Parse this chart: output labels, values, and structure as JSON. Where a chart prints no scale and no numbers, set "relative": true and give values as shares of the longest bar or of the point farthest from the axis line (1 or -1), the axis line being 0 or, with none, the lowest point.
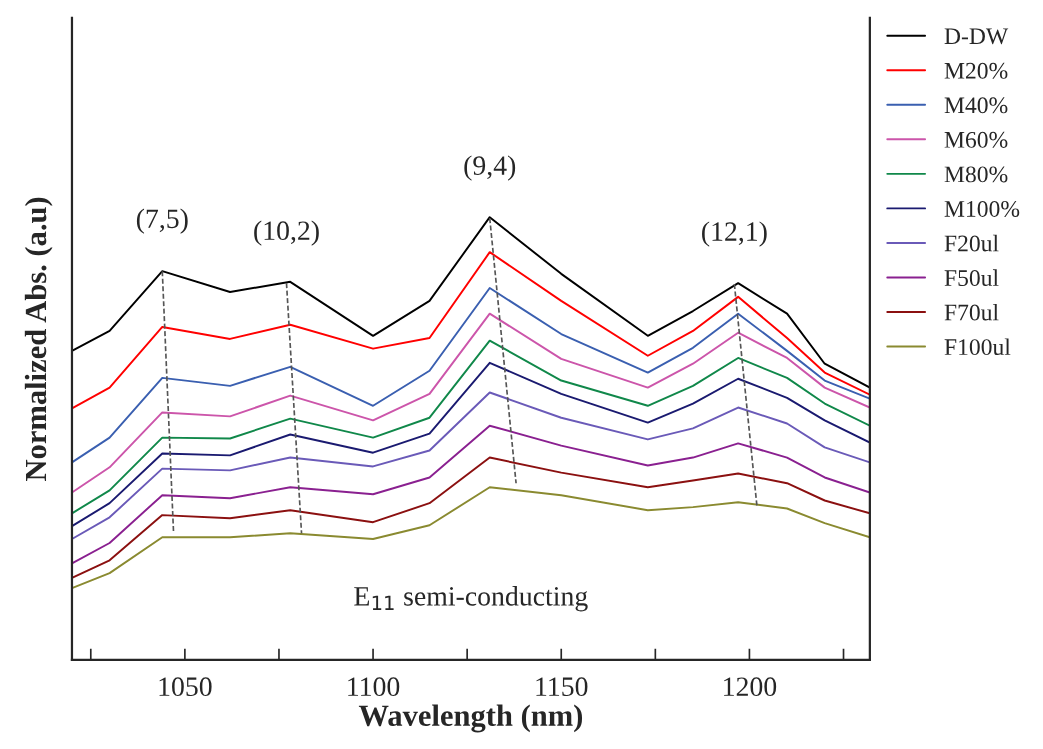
{
  "chart_data": {
    "type": "line",
    "relative": true,
    "xlabel": "Wavelength (nm)",
    "ylabel": "Normalized Abs. (a.u)",
    "xlim": [
      1020,
      1232
    ],
    "xticks": [
      {
        "value": 1025,
        "label": null
      },
      1050,
      {
        "value": 1075,
        "label": null
      },
      1100,
      {
        "value": 1125,
        "label": null
      },
      1150,
      {
        "value": 1175,
        "label": null
      },
      1200,
      {
        "value": 1225,
        "label": null
      }
    ],
    "x": [
      1020,
      1030,
      1044,
      1062,
      1078,
      1100,
      1115,
      1131,
      1150,
      1173,
      1185,
      1197,
      1210,
      1220,
      1232
    ],
    "legend": "right",
    "grid": false,
    "marker": "none",
    "line_style": "solid",
    "series": [
      {
        "name": "D-DW",
        "color": "#000000",
        "values": [
          0.698,
          0.743,
          0.878,
          0.831,
          0.854,
          0.732,
          0.811,
          1.0,
          0.872,
          0.732,
          0.788,
          0.851,
          0.782,
          0.669,
          0.615
        ]
      },
      {
        "name": "M20%",
        "color": "#ff0000",
        "values": [
          0.568,
          0.615,
          0.752,
          0.725,
          0.757,
          0.703,
          0.727,
          0.921,
          0.811,
          0.687,
          0.743,
          0.82,
          0.727,
          0.649,
          0.599
        ]
      },
      {
        "name": "M40%",
        "color": "#3a5fb0",
        "values": [
          0.446,
          0.502,
          0.637,
          0.619,
          0.662,
          0.574,
          0.653,
          0.84,
          0.736,
          0.649,
          0.705,
          0.782,
          0.698,
          0.631,
          0.59
        ]
      },
      {
        "name": "M60%",
        "color": "#cc55aa",
        "values": [
          0.378,
          0.435,
          0.559,
          0.55,
          0.597,
          0.541,
          0.601,
          0.782,
          0.68,
          0.615,
          0.669,
          0.739,
          0.682,
          0.615,
          0.57
        ]
      },
      {
        "name": "M80%",
        "color": "#10884a",
        "values": [
          0.331,
          0.383,
          0.502,
          0.5,
          0.545,
          0.502,
          0.547,
          0.721,
          0.631,
          0.574,
          0.619,
          0.682,
          0.637,
          0.579,
          0.529
        ]
      },
      {
        "name": "M100%",
        "color": "#1a1a70",
        "values": [
          0.302,
          0.354,
          0.466,
          0.462,
          0.509,
          0.468,
          0.511,
          0.671,
          0.601,
          0.536,
          0.579,
          0.635,
          0.592,
          0.541,
          0.491
        ]
      },
      {
        "name": "F20ul",
        "color": "#6a5ab8",
        "values": [
          0.273,
          0.322,
          0.432,
          0.428,
          0.457,
          0.437,
          0.473,
          0.604,
          0.547,
          0.498,
          0.523,
          0.57,
          0.534,
          0.48,
          0.446
        ]
      },
      {
        "name": "F50ul",
        "color": "#8a2090",
        "values": [
          0.218,
          0.264,
          0.372,
          0.365,
          0.39,
          0.374,
          0.412,
          0.529,
          0.484,
          0.439,
          0.457,
          0.489,
          0.457,
          0.412,
          0.378
        ]
      },
      {
        "name": "F70ul",
        "color": "#8b1010",
        "values": [
          0.185,
          0.225,
          0.327,
          0.32,
          0.338,
          0.311,
          0.354,
          0.457,
          0.423,
          0.39,
          0.405,
          0.421,
          0.399,
          0.36,
          0.331
        ]
      },
      {
        "name": "F100ul",
        "color": "#8a8a30",
        "values": [
          0.162,
          0.196,
          0.277,
          0.277,
          0.286,
          0.273,
          0.304,
          0.39,
          0.372,
          0.338,
          0.345,
          0.356,
          0.342,
          0.309,
          0.277
        ]
      },
      {
        "color": "#555555",
        "line_style": "dashed",
        "x": [
          1044,
          1047
        ],
        "values": [
          0.878,
          0.286
        ]
      },
      {
        "color": "#555555",
        "line_style": "dashed",
        "x": [
          1077,
          1081
        ],
        "values": [
          0.851,
          0.286
        ]
      },
      {
        "color": "#555555",
        "line_style": "dashed",
        "x": [
          1131,
          1138
        ],
        "values": [
          0.998,
          0.399
        ]
      },
      {
        "color": "#555555",
        "line_style": "dashed",
        "x": [
          1196,
          1202
        ],
        "values": [
          0.849,
          0.347
        ]
      }
    ],
    "annotations": [
      {
        "text": "(7,5)",
        "x": 1044,
        "y": 0.878
      },
      {
        "text": "(10,2)",
        "x": 1077,
        "y": 0.851
      },
      {
        "text": "(9,4)",
        "x": 1131,
        "y": 0.998
      },
      {
        "text": "(12,1)",
        "x": 1196,
        "y": 0.849
      },
      "E$_{11}$ semi-conducting"
    ]
  }
}
